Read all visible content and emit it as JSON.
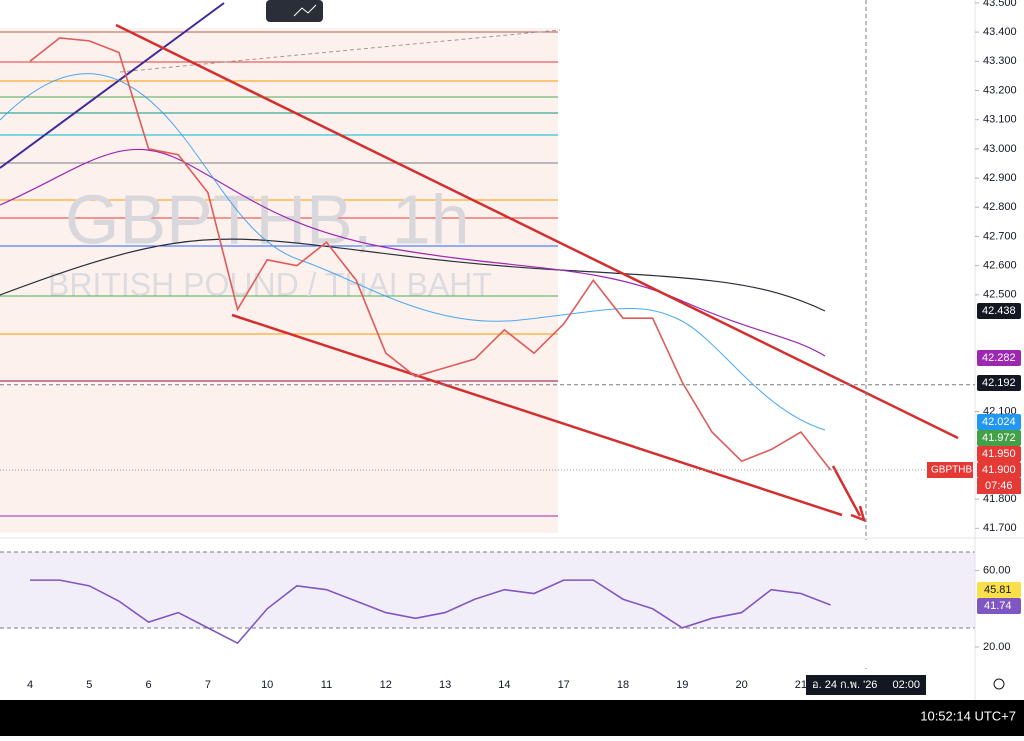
{
  "watermark": {
    "symbol": "GBPTHB, 1h",
    "name": "BRITISH POUND / THAI BAHT"
  },
  "chart_data": {
    "type": "line",
    "categories": [
      "4",
      null,
      "5",
      null,
      "6",
      null,
      "7",
      null,
      "10",
      null,
      "11",
      null,
      "12",
      null,
      "13",
      null,
      "14",
      null,
      "17",
      null,
      "18",
      null,
      "19",
      null,
      "20",
      null,
      "21",
      null
    ],
    "series": [
      {
        "name": "GBPTHB",
        "color": "#e05a5a",
        "values": [
          43.3,
          43.38,
          43.37,
          43.33,
          43.0,
          42.98,
          42.85,
          42.45,
          42.62,
          42.6,
          42.68,
          42.55,
          42.3,
          42.22,
          42.25,
          42.28,
          42.38,
          42.3,
          42.4,
          42.55,
          42.42,
          42.42,
          42.2,
          42.03,
          41.93,
          41.97,
          42.03,
          41.9
        ]
      }
    ],
    "ylim": [
      41.66,
      43.51
    ],
    "yticks": [
      {
        "value": 43.5,
        "label": "43.500"
      },
      {
        "value": 43.4,
        "label": "43.400"
      },
      {
        "value": 43.3,
        "label": "43.300"
      },
      {
        "value": 43.2,
        "label": "43.200"
      },
      {
        "value": 43.1,
        "label": "43.100"
      },
      {
        "value": 43.0,
        "label": "43.000"
      },
      {
        "value": 42.9,
        "label": "42.900"
      },
      {
        "value": 42.8,
        "label": "42.800"
      },
      {
        "value": 42.7,
        "label": "42.700"
      },
      {
        "value": 42.6,
        "label": "42.600"
      },
      {
        "value": 42.5,
        "label": "42.500"
      },
      {
        "value": 42.1,
        "label": "42.100"
      },
      {
        "value": 41.8,
        "label": "41.800"
      },
      {
        "value": 41.7,
        "label": "41.700"
      }
    ],
    "price_tags": [
      {
        "value": 42.438,
        "label": "42.438",
        "color": "#131722"
      },
      {
        "value": 42.282,
        "label": "42.282",
        "color": "#9c27b0"
      },
      {
        "value": 42.192,
        "label": "42.192",
        "color": "#131722"
      },
      {
        "value": 42.024,
        "label": "42.024",
        "color": "#2196f3"
      },
      {
        "value": 41.972,
        "label": "41.972",
        "color": "#43a047"
      },
      {
        "value": 41.95,
        "label": "41.950",
        "color": "#e53935"
      },
      {
        "value": 41.9,
        "label": "41.900",
        "color": "#e53935"
      }
    ],
    "symbol_tag": "GBPTHB",
    "countdown": "07:46"
  },
  "rsi": {
    "type": "line",
    "color": "#7e57c2",
    "values": [
      55,
      55,
      52,
      44,
      33,
      38,
      30,
      22,
      40,
      52,
      50,
      44,
      38,
      35,
      38,
      45,
      50,
      48,
      55,
      55,
      45,
      40,
      30,
      35,
      38,
      50,
      48,
      42
    ],
    "ylim": [
      9,
      76
    ],
    "yticks": [
      {
        "value": 60,
        "label": "60.00"
      },
      {
        "value": 20,
        "label": "20.00"
      }
    ],
    "tags": [
      {
        "value": 45.81,
        "label": "45.81",
        "color": "#f9e04b"
      },
      {
        "value": 41.74,
        "label": "41.74",
        "color": "#7e57c2"
      }
    ]
  },
  "crosshair_date": "อ. 24 ก.พ. '26",
  "crosshair_time": "02:00",
  "clock": "10:52:14 UTC+7"
}
